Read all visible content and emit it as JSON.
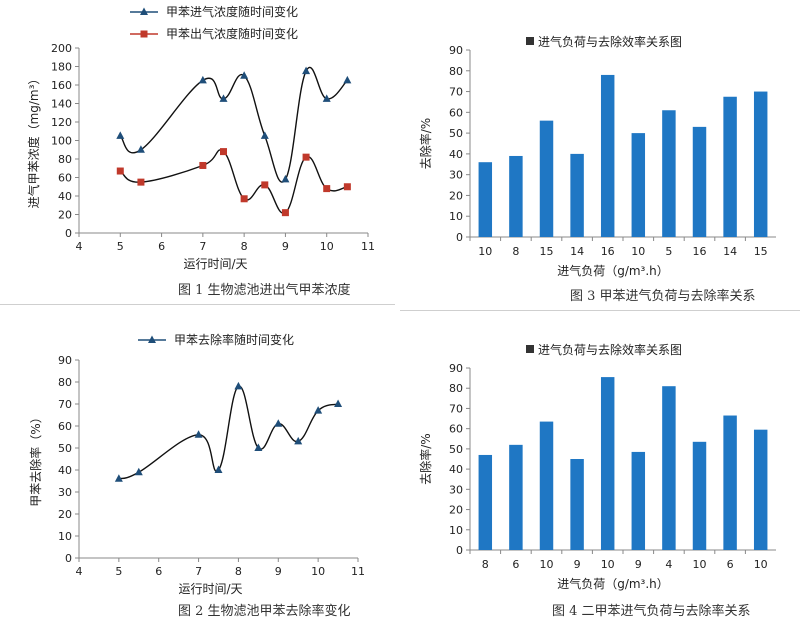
{
  "chart_data": [
    {
      "type": "line",
      "xlabel": "运行时间/天",
      "ylabel": "进气甲苯浓度（mg/m³）",
      "caption": "图 1    生物滤池进出气甲苯浓度",
      "xlim": [
        4,
        11
      ],
      "xticks": [
        4,
        5,
        6,
        7,
        8,
        9,
        10,
        11
      ],
      "ylim": [
        0,
        200
      ],
      "yticks": [
        0,
        20,
        40,
        60,
        80,
        100,
        120,
        140,
        160,
        180,
        200
      ],
      "grid": false,
      "legend_position": "top",
      "series": [
        {
          "name": "甲苯进气浓度随时间变化",
          "color": "#1f4e79",
          "marker": "triangle",
          "x": [
            5,
            5.5,
            7,
            7.5,
            8,
            8.5,
            9,
            9.5,
            10,
            10.5
          ],
          "y": [
            105,
            90,
            165,
            145,
            170,
            105,
            58,
            175,
            145,
            165
          ]
        },
        {
          "name": "甲苯出气浓度随时间变化",
          "color": "#c0392b",
          "marker": "square",
          "x": [
            5,
            5.5,
            7,
            7.5,
            8,
            8.5,
            9,
            9.5,
            10,
            10.5
          ],
          "y": [
            67,
            55,
            73,
            88,
            37,
            52,
            22,
            82,
            48,
            50
          ]
        }
      ]
    },
    {
      "type": "bar",
      "title": "进气负荷与去除效率关系图",
      "xlabel": "进气负荷（g/m³.h）",
      "ylabel": "去除率/%",
      "caption": "图 3    甲苯进气负荷与去除率关系",
      "categories": [
        "10",
        "8",
        "15",
        "14",
        "16",
        "10",
        "5",
        "16",
        "14",
        "15"
      ],
      "values": [
        36,
        39,
        56,
        40,
        78,
        50,
        61,
        53,
        67.5,
        70
      ],
      "ylim": [
        0,
        90
      ],
      "yticks": [
        0,
        10,
        20,
        30,
        40,
        50,
        60,
        70,
        80,
        90
      ],
      "color": "#1f77c4",
      "grid": false
    },
    {
      "type": "line",
      "xlabel": "运行时间/天",
      "ylabel": "甲苯去除率（%）",
      "caption": "图 2    生物滤池甲苯去除率变化",
      "xlim": [
        4,
        11
      ],
      "xticks": [
        4,
        5,
        6,
        7,
        8,
        9,
        10,
        11
      ],
      "ylim": [
        0,
        90
      ],
      "yticks": [
        0,
        10,
        20,
        30,
        40,
        50,
        60,
        70,
        80,
        90
      ],
      "grid": false,
      "legend_position": "top",
      "series": [
        {
          "name": "甲苯去除率随时间变化",
          "color": "#1f4e79",
          "marker": "triangle",
          "x": [
            5,
            5.5,
            7,
            7.5,
            8,
            8.5,
            9,
            9.5,
            10,
            10.5
          ],
          "y": [
            36,
            39,
            56,
            40,
            78,
            50,
            61,
            53,
            67,
            70
          ]
        }
      ]
    },
    {
      "type": "bar",
      "title": "进气负荷与去除效率关系图",
      "xlabel": "进气负荷（g/m³.h）",
      "ylabel": "去除率/%",
      "caption": "图 4    二甲苯进气负荷与去除率关系",
      "categories": [
        "8",
        "6",
        "10",
        "9",
        "10",
        "9",
        "4",
        "10",
        "6",
        "10"
      ],
      "values": [
        47,
        52,
        63.5,
        45,
        85.5,
        48.5,
        81,
        53.5,
        66.5,
        59.5
      ],
      "ylim": [
        0,
        90
      ],
      "yticks": [
        0,
        10,
        20,
        30,
        40,
        50,
        60,
        70,
        80,
        90
      ],
      "color": "#1f77c4",
      "grid": false
    }
  ]
}
